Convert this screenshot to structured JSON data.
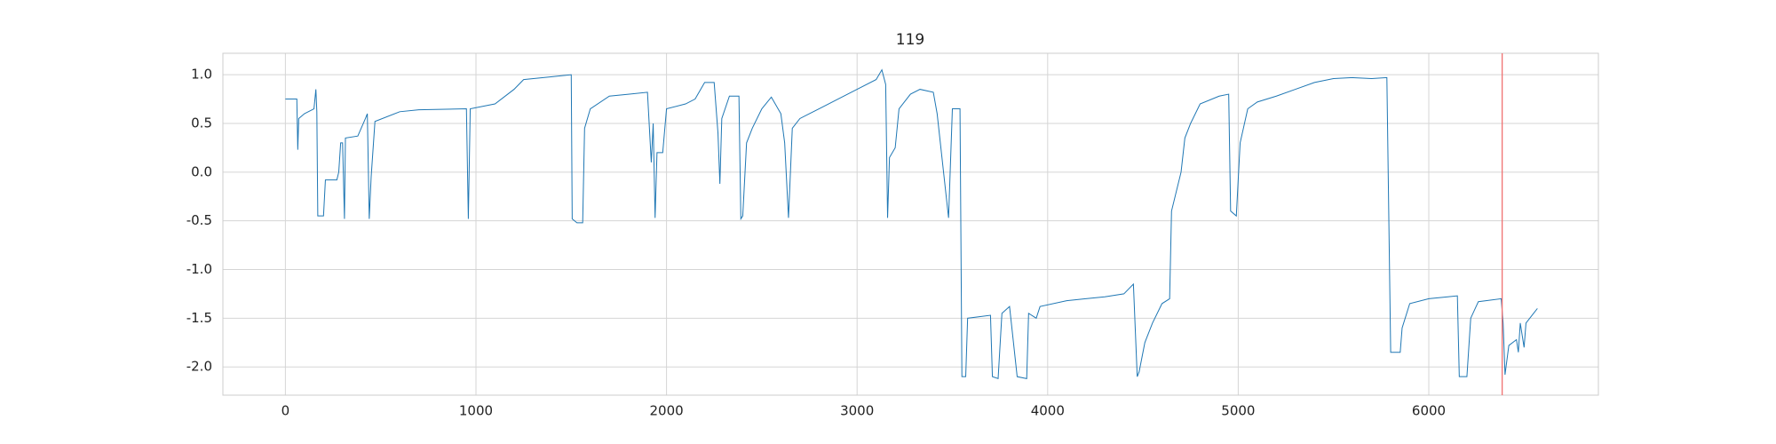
{
  "chart_data": {
    "type": "line",
    "title": "119",
    "x": [
      0,
      60,
      65,
      70,
      100,
      150,
      160,
      165,
      170,
      200,
      210,
      270,
      280,
      290,
      300,
      310,
      315,
      380,
      420,
      430,
      440,
      450,
      470,
      600,
      700,
      950,
      960,
      970,
      1100,
      1200,
      1250,
      1400,
      1500,
      1505,
      1530,
      1560,
      1570,
      1600,
      1700,
      1800,
      1900,
      1920,
      1930,
      1940,
      1950,
      1980,
      2000,
      2100,
      2150,
      2200,
      2250,
      2270,
      2280,
      2290,
      2330,
      2380,
      2390,
      2400,
      2420,
      2450,
      2500,
      2550,
      2600,
      2620,
      2640,
      2660,
      2700,
      2800,
      2900,
      3000,
      3100,
      3130,
      3150,
      3160,
      3170,
      3200,
      3220,
      3280,
      3330,
      3400,
      3420,
      3480,
      3500,
      3540,
      3550,
      3570,
      3580,
      3700,
      3710,
      3740,
      3760,
      3800,
      3840,
      3890,
      3900,
      3940,
      3960,
      4100,
      4200,
      4300,
      4400,
      4450,
      4470,
      4480,
      4510,
      4550,
      4600,
      4640,
      4650,
      4700,
      4720,
      4750,
      4800,
      4900,
      4950,
      4960,
      4990,
      5010,
      5050,
      5100,
      5200,
      5300,
      5400,
      5500,
      5600,
      5700,
      5780,
      5800,
      5850,
      5860,
      5900,
      6000,
      6100,
      6150,
      6160,
      6200,
      6220,
      6260,
      6300,
      6380,
      6390,
      6400,
      6420,
      6460,
      6470,
      6480,
      6500,
      6510,
      6550,
      6570
    ],
    "values": [
      0.75,
      0.75,
      0.23,
      0.55,
      0.6,
      0.65,
      0.85,
      0.62,
      -0.45,
      -0.45,
      -0.08,
      -0.08,
      0.0,
      0.3,
      0.3,
      -0.48,
      0.35,
      0.37,
      0.55,
      0.6,
      -0.48,
      -0.05,
      0.52,
      0.62,
      0.64,
      0.65,
      -0.48,
      0.65,
      0.7,
      0.85,
      0.95,
      0.98,
      1.0,
      -0.48,
      -0.52,
      -0.52,
      0.45,
      0.65,
      0.78,
      0.8,
      0.82,
      0.1,
      0.5,
      -0.47,
      0.2,
      0.2,
      0.65,
      0.7,
      0.75,
      0.92,
      0.92,
      0.4,
      -0.12,
      0.55,
      0.78,
      0.78,
      -0.48,
      -0.45,
      0.3,
      0.45,
      0.65,
      0.77,
      0.6,
      0.3,
      -0.47,
      0.45,
      0.55,
      0.65,
      0.75,
      0.85,
      0.95,
      1.05,
      0.9,
      -0.47,
      0.15,
      0.25,
      0.65,
      0.8,
      0.85,
      0.82,
      0.6,
      -0.47,
      0.65,
      0.65,
      -2.1,
      -2.1,
      -1.5,
      -1.47,
      -2.1,
      -2.12,
      -1.45,
      -1.38,
      -2.1,
      -2.12,
      -1.45,
      -1.5,
      -1.38,
      -1.32,
      -1.3,
      -1.28,
      -1.25,
      -1.15,
      -2.1,
      -2.05,
      -1.75,
      -1.55,
      -1.35,
      -1.3,
      -0.4,
      0.0,
      0.35,
      0.5,
      0.7,
      0.78,
      0.8,
      -0.4,
      -0.45,
      0.3,
      0.65,
      0.72,
      0.78,
      0.85,
      0.92,
      0.96,
      0.97,
      0.96,
      0.97,
      -1.85,
      -1.85,
      -1.6,
      -1.35,
      -1.3,
      -1.28,
      -1.27,
      -2.1,
      -2.1,
      -1.5,
      -1.33,
      -1.32,
      -1.3,
      -1.55,
      -2.08,
      -1.78,
      -1.72,
      -1.85,
      -1.55,
      -1.8,
      -1.55,
      -1.45,
      -1.4
    ],
    "color": "#1f77b4",
    "vline": 6385,
    "vline_color": "#f07070",
    "xlim": [
      -328,
      6890
    ],
    "ylim": [
      -2.29,
      1.22
    ],
    "xticks": [
      0,
      1000,
      2000,
      3000,
      4000,
      5000,
      6000
    ],
    "yticks": [
      {
        "value": 1.0,
        "label": "1.0"
      },
      0.5,
      {
        "value": 0.0,
        "label": "0.0"
      },
      -0.5,
      {
        "value": -1.0,
        "label": "-1.0"
      },
      -1.5,
      {
        "value": -2.0,
        "label": "-2.0"
      }
    ],
    "grid": true
  }
}
